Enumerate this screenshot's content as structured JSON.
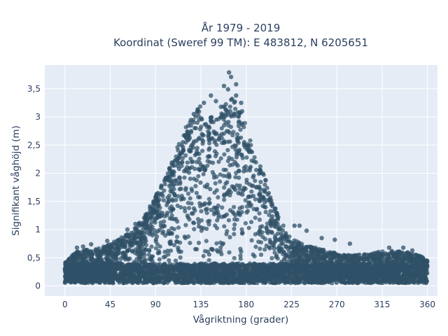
{
  "chart_data": {
    "type": "scatter",
    "title_line1": "År 1979 - 2019",
    "title_line2": "Koordinat (Sweref 99 TM): E 483812, N 6205651",
    "xlabel": "Vågriktning (grader)",
    "ylabel": "Signifikant våghöjd (m)",
    "xlim": [
      -20,
      370
    ],
    "ylim": [
      -0.18,
      3.92
    ],
    "x_ticks": [
      0,
      45,
      90,
      135,
      180,
      225,
      270,
      315,
      360
    ],
    "x_tick_labels": [
      "0",
      "45",
      "90",
      "135",
      "180",
      "225",
      "270",
      "315",
      "360"
    ],
    "y_ticks": [
      0,
      0.5,
      1,
      1.5,
      2,
      2.5,
      3,
      3.5
    ],
    "y_tick_labels": [
      "0",
      "0,5",
      "1",
      "1,5",
      "2",
      "2,5",
      "3",
      "3,5"
    ],
    "grid": true,
    "marker_color": "#2f5066",
    "plot_background": "#e5ecf6",
    "series": [
      {
        "x": [
          0,
          5,
          10,
          15,
          20,
          25,
          30,
          35,
          40,
          45,
          50,
          55,
          60,
          65,
          70,
          75,
          80,
          85,
          90,
          95,
          100,
          105,
          110,
          115,
          120,
          125,
          130,
          135,
          140,
          145,
          150,
          155,
          160,
          165,
          170,
          175,
          180,
          185,
          190,
          195,
          200,
          205,
          210,
          215,
          220,
          225,
          230,
          235,
          240,
          245,
          250,
          255,
          260,
          265,
          270,
          275,
          280,
          285,
          290,
          295,
          300,
          305,
          310,
          315,
          320,
          325,
          330,
          335,
          340,
          345,
          350,
          355,
          360
        ],
        "y": [
          0.45,
          0.5,
          0.6,
          0.62,
          0.65,
          0.62,
          0.65,
          0.68,
          0.72,
          0.75,
          0.8,
          0.85,
          0.9,
          0.95,
          1.05,
          1.15,
          1.3,
          1.45,
          1.6,
          1.75,
          1.95,
          2.15,
          2.4,
          2.65,
          2.85,
          3.0,
          3.1,
          3.2,
          3.15,
          3.05,
          3.0,
          3.1,
          3.3,
          3.45,
          3.3,
          3.05,
          2.85,
          2.6,
          2.35,
          2.1,
          1.85,
          1.6,
          1.35,
          1.15,
          0.95,
          0.85,
          0.8,
          0.75,
          0.72,
          0.7,
          0.68,
          0.65,
          0.62,
          0.6,
          0.58,
          0.56,
          0.55,
          0.55,
          0.55,
          0.56,
          0.56,
          0.58,
          0.6,
          0.62,
          0.62,
          0.63,
          0.62,
          0.6,
          0.6,
          0.58,
          0.55,
          0.52,
          0.48
        ],
        "y_min": 0.05,
        "outliers": [
          {
            "x": 163,
            "y": 3.79
          },
          {
            "x": 165,
            "y": 3.71
          },
          {
            "x": 170,
            "y": 3.58
          },
          {
            "x": 158,
            "y": 3.55
          },
          {
            "x": 162,
            "y": 3.49
          },
          {
            "x": 145,
            "y": 3.38
          },
          {
            "x": 150,
            "y": 3.28
          },
          {
            "x": 166,
            "y": 3.32
          },
          {
            "x": 175,
            "y": 3.25
          },
          {
            "x": 132,
            "y": 3.12
          },
          {
            "x": 155,
            "y": 3.18
          },
          {
            "x": 176,
            "y": 3.1
          },
          {
            "x": 128,
            "y": 3.05
          },
          {
            "x": 138,
            "y": 3.25
          },
          {
            "x": 170,
            "y": 3.38
          },
          {
            "x": 255,
            "y": 0.85
          },
          {
            "x": 268,
            "y": 0.82
          },
          {
            "x": 283,
            "y": 0.75
          },
          {
            "x": 233,
            "y": 1.07
          },
          {
            "x": 228,
            "y": 1.07
          },
          {
            "x": 240,
            "y": 0.98
          },
          {
            "x": 322,
            "y": 0.68
          },
          {
            "x": 336,
            "y": 0.68
          },
          {
            "x": 345,
            "y": 0.63
          },
          {
            "x": 12,
            "y": 0.68
          },
          {
            "x": 18,
            "y": 0.7
          },
          {
            "x": 26,
            "y": 0.74
          },
          {
            "x": 42,
            "y": 0.8
          },
          {
            "x": 62,
            "y": 1.0
          },
          {
            "x": 70,
            "y": 1.1
          },
          {
            "x": 80,
            "y": 1.22
          },
          {
            "x": 88,
            "y": 1.45
          },
          {
            "x": 95,
            "y": 1.63
          }
        ]
      }
    ]
  }
}
